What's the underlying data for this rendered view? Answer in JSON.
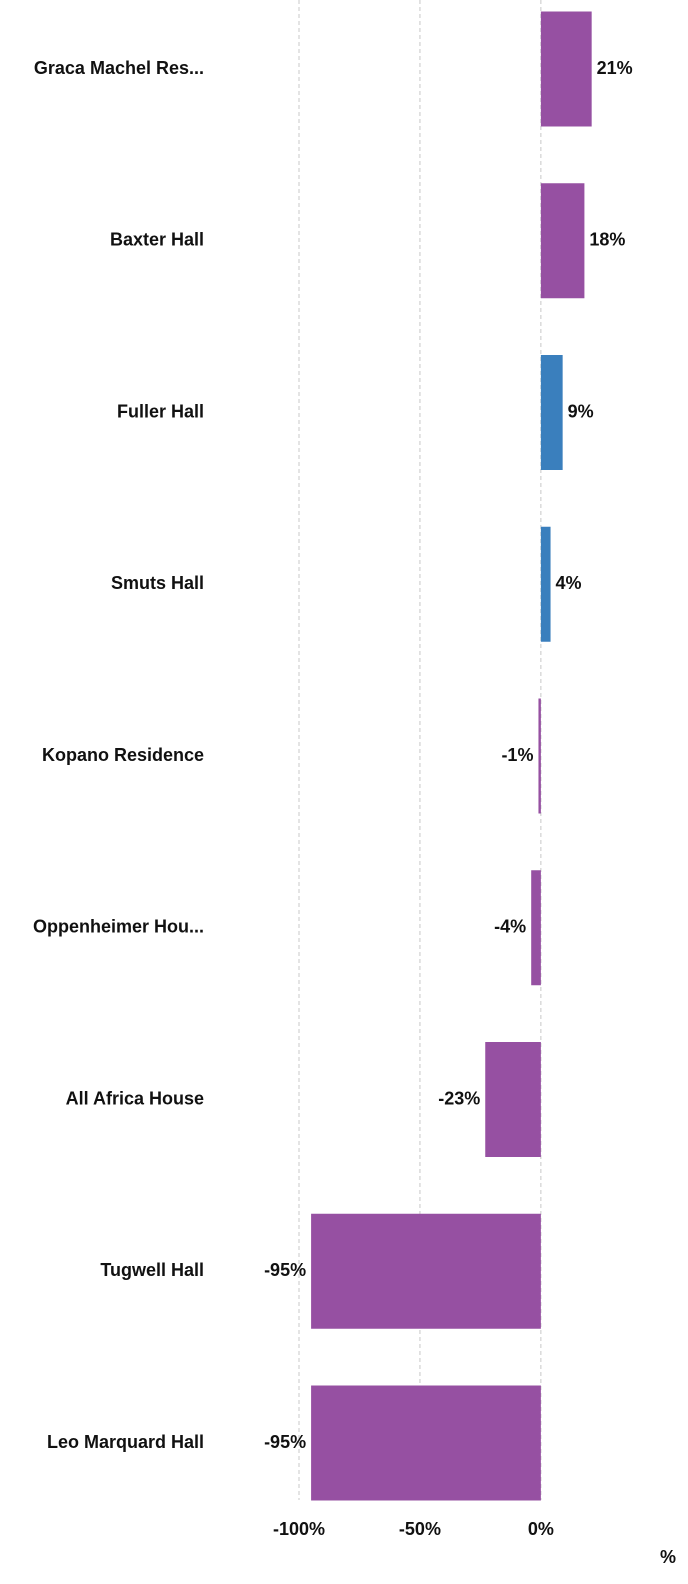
{
  "chart_data": {
    "type": "hbar",
    "categories": [
      "Graca Machel Res...",
      "Baxter Hall",
      "Fuller Hall",
      "Smuts Hall",
      "Kopano Residence",
      "Oppenheimer Hou...",
      "All Africa House",
      "Tugwell Hall",
      "Leo Marquard Hall"
    ],
    "values": [
      21,
      18,
      9,
      4,
      -1,
      -4,
      -23,
      -95,
      -95
    ],
    "value_labels": [
      "21%",
      "18%",
      "9%",
      "4%",
      "-1%",
      "-4%",
      "-23%",
      "-95%",
      "-95%"
    ],
    "colors": [
      "#9650a2",
      "#9650a2",
      "#3a7fbd",
      "#3a7fbd",
      "#9650a2",
      "#9650a2",
      "#9650a2",
      "#9650a2",
      "#9650a2"
    ],
    "xlabel": "%",
    "xlim": [
      -100,
      60
    ],
    "xticks": [
      {
        "value": -100,
        "label": "-100%"
      },
      {
        "value": -50,
        "label": "-50%"
      },
      {
        "value": 0,
        "label": "0%"
      }
    ],
    "grid": true
  }
}
